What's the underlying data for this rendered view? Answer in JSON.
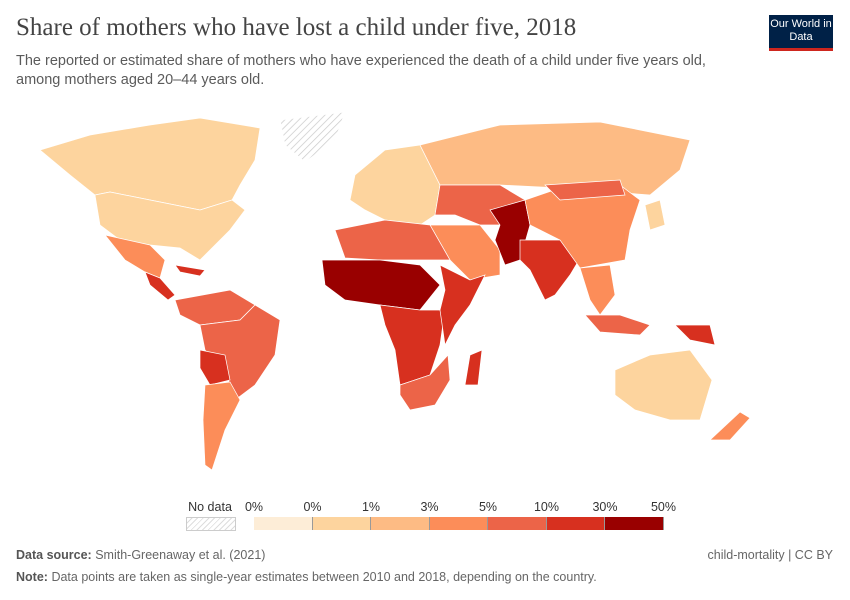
{
  "header": {
    "title": "Share of mothers who have lost a child under five, 2018",
    "subtitle": "The reported or estimated share of mothers who have experienced the death of a child under five years old, among mothers aged 20–44 years old.",
    "logo": "Our World in Data"
  },
  "legend": {
    "no_data_label": "No data",
    "tick_labels": [
      "0%",
      "0%",
      "1%",
      "3%",
      "5%",
      "10%",
      "30%",
      "50%"
    ],
    "bin_colors": [
      "#fdedd7",
      "#fdd49e",
      "#fdbb84",
      "#fc8d59",
      "#ec6448",
      "#d7301f",
      "#990000"
    ],
    "no_data_color": "#e6e6e6"
  },
  "map_regions": [
    {
      "name": "Canada",
      "bin": 1
    },
    {
      "name": "United States",
      "bin": 1
    },
    {
      "name": "Greenland",
      "bin": -1
    },
    {
      "name": "Mexico",
      "bin": 3
    },
    {
      "name": "Central America",
      "bin": 5
    },
    {
      "name": "Caribbean",
      "bin": 5
    },
    {
      "name": "Northern South America",
      "bin": 4
    },
    {
      "name": "Brazil",
      "bin": 4
    },
    {
      "name": "Bolivia",
      "bin": 5
    },
    {
      "name": "Argentina",
      "bin": 3
    },
    {
      "name": "Europe",
      "bin": 1
    },
    {
      "name": "Russia",
      "bin": 2
    },
    {
      "name": "Central Asia",
      "bin": 4
    },
    {
      "name": "Middle East",
      "bin": 3
    },
    {
      "name": "North Africa",
      "bin": 4
    },
    {
      "name": "West Africa",
      "bin": 6
    },
    {
      "name": "Central Africa",
      "bin": 5
    },
    {
      "name": "East Africa",
      "bin": 5
    },
    {
      "name": "Southern Africa",
      "bin": 4
    },
    {
      "name": "Madagascar",
      "bin": 5
    },
    {
      "name": "Afghanistan-Pakistan",
      "bin": 6
    },
    {
      "name": "India",
      "bin": 5
    },
    {
      "name": "China",
      "bin": 3
    },
    {
      "name": "Mongolia",
      "bin": 4
    },
    {
      "name": "Southeast Asia",
      "bin": 3
    },
    {
      "name": "Indonesia",
      "bin": 4
    },
    {
      "name": "Papua New Guinea",
      "bin": 5
    },
    {
      "name": "Japan",
      "bin": 1
    },
    {
      "name": "Australia",
      "bin": 1
    },
    {
      "name": "New Zealand",
      "bin": 3
    }
  ],
  "footer": {
    "source_label": "Data source:",
    "source": "Smith-Greenaway et al. (2021)",
    "note_label": "Note:",
    "note": "Data points are taken as single-year estimates between 2010 and 2018, depending on the country.",
    "license": "child-mortality | CC BY"
  }
}
